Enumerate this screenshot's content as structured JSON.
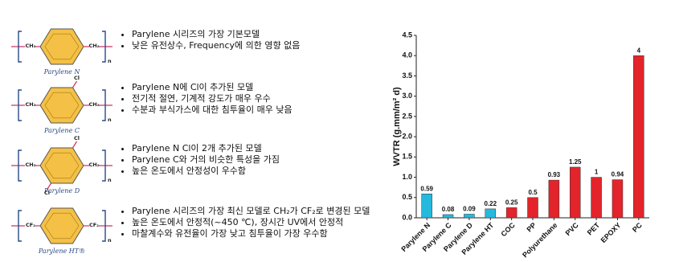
{
  "items": [
    {
      "name": "Parylene N",
      "left_group": "CH₂",
      "right_group": "CH₂",
      "substituents": [],
      "repeat": "n",
      "bullets": [
        "Parylene 시리즈의 가장 기본모델",
        "낮은 유전상수, Frequency에 의한 영향 없음"
      ]
    },
    {
      "name": "Parylene C",
      "left_group": "CH₂",
      "right_group": "CH₂",
      "substituents": [
        "Cl"
      ],
      "repeat": "n",
      "bullets": [
        "Parylene N에 Cl이 추가된 모델",
        "전기적 절연, 기계적 강도가 매우 우수",
        "수분과 부식가스에 대한 침투율이 매우 낮음"
      ]
    },
    {
      "name": "Parylene D",
      "left_group": "CH₂",
      "right_group": "CH₂",
      "substituents": [
        "Cl",
        "Cl"
      ],
      "repeat": "n",
      "bullets": [
        "Parylene N Cl이 2개 추가된 모델",
        "Parylene C와 거의 비슷한 특성을 가짐",
        "높은 온도에서 안정성이 우수함"
      ]
    },
    {
      "name": "Parylene HT®",
      "left_group": "CF₂",
      "right_group": "CF₂",
      "substituents": [],
      "repeat": "n",
      "bullets": [
        "Parylene 시리즈의 가장 최신 모델로 CH₂가 CF₂로 변경된 모델",
        "높은 온도에서 안정적(~450 ℃), 장시간 UV에서 안정적",
        "마찰계수와 유전율이 가장 낮고 침투율이 가장 우수함"
      ]
    }
  ],
  "chart_data": {
    "type": "bar",
    "y_label": "WVTR (g.mm/m² d)",
    "categories": [
      "Parylene N",
      "Parylene C",
      "Parylene D",
      "Parylene HT",
      "COC",
      "PP",
      "Polyurethane",
      "PVC",
      "PET",
      "EPOXY",
      "PC"
    ],
    "values": [
      0.59,
      0.08,
      0.09,
      0.22,
      0.25,
      0.5,
      0.93,
      1.25,
      1,
      0.94,
      4
    ],
    "colors": [
      "#25b9dd",
      "#25b9dd",
      "#25b9dd",
      "#25b9dd",
      "#e3242b",
      "#e3242b",
      "#e3242b",
      "#e3242b",
      "#e3242b",
      "#e3242b",
      "#e3242b"
    ],
    "ylim": [
      0,
      4.5
    ],
    "yticks": [
      {
        "value": 0,
        "label": "0.0"
      },
      0.5,
      {
        "value": 1,
        "label": "1.0"
      },
      1.5,
      {
        "value": 2,
        "label": "2.0"
      },
      2.5,
      {
        "value": 3,
        "label": "3.0"
      },
      3.5,
      {
        "value": 4,
        "label": "4.0"
      },
      4.5
    ]
  }
}
